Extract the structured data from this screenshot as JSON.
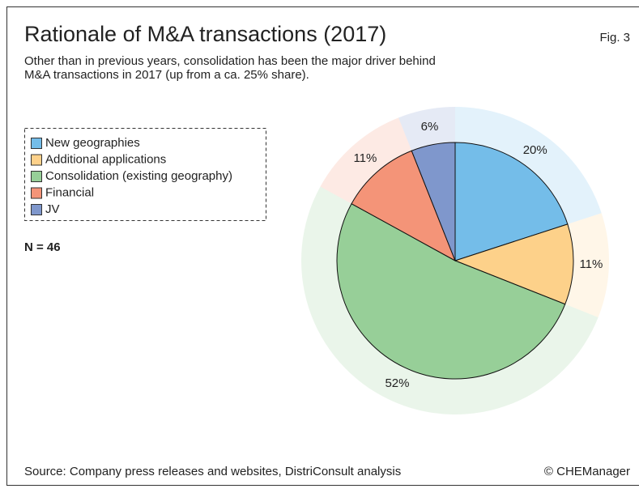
{
  "chart_data": {
    "type": "pie",
    "title": "Rationale of M&A transactions (2017)",
    "figure_label": "Fig. 3",
    "subtitle": [
      "Other than in previous years, consolidation has been the major driver behind",
      "M&A transactions in 2017 (up from a ca. 25% share)."
    ],
    "categories": [
      "New geographies",
      "Additional applications",
      "Consolidation (existing geography)",
      "Financial",
      "JV"
    ],
    "values": [
      20,
      11,
      52,
      11,
      6
    ],
    "value_labels": [
      "20%",
      "11%",
      "52%",
      "11%",
      "6%"
    ],
    "colors": [
      "#74bde9",
      "#fdd18a",
      "#97cf98",
      "#f49478",
      "#7f97cc"
    ],
    "annotation": "N = 46",
    "source": "Source: Company press releases and websites, DistriConsult analysis",
    "credit": "© CHEManager",
    "legend": "top-left"
  }
}
